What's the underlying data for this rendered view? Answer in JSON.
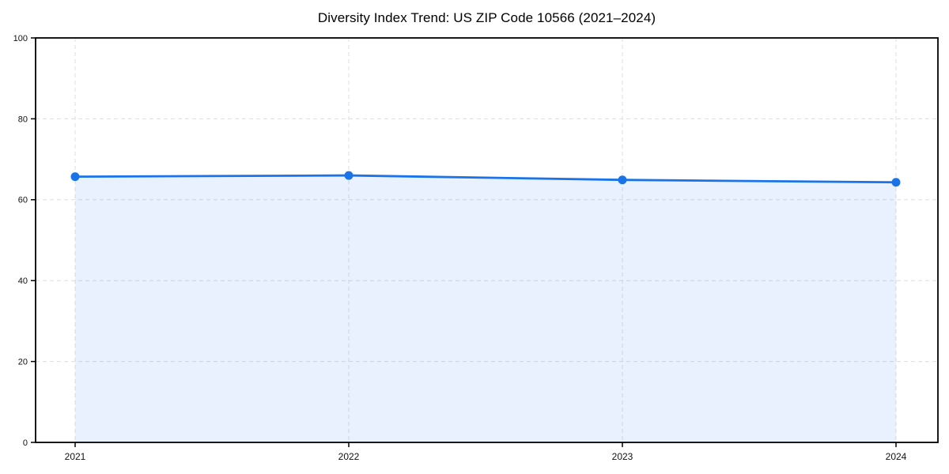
{
  "title": "Diversity Index Trend: US ZIP Code 10566 (2021–2024)",
  "chart_data": {
    "type": "area",
    "title": "Diversity Index Trend: US ZIP Code 10566 (2021–2024)",
    "x": [
      "2021",
      "2022",
      "2023",
      "2024"
    ],
    "series": [
      {
        "name": "Diversity Index",
        "values": [
          65.7,
          66.0,
          64.9,
          64.3
        ]
      }
    ],
    "xlabel": "",
    "ylabel": "",
    "ylim": [
      0,
      100
    ],
    "yticks": [
      0,
      20,
      40,
      60,
      80,
      100
    ],
    "grid": true,
    "grid_style": "dashed",
    "legend_position": "none",
    "colors": {
      "line": "#1a73e8",
      "marker": "#1a73e8",
      "fill": "rgba(26,115,232,0.10)",
      "grid": "#dedede",
      "axis": "#000000",
      "text": "#111111"
    }
  }
}
